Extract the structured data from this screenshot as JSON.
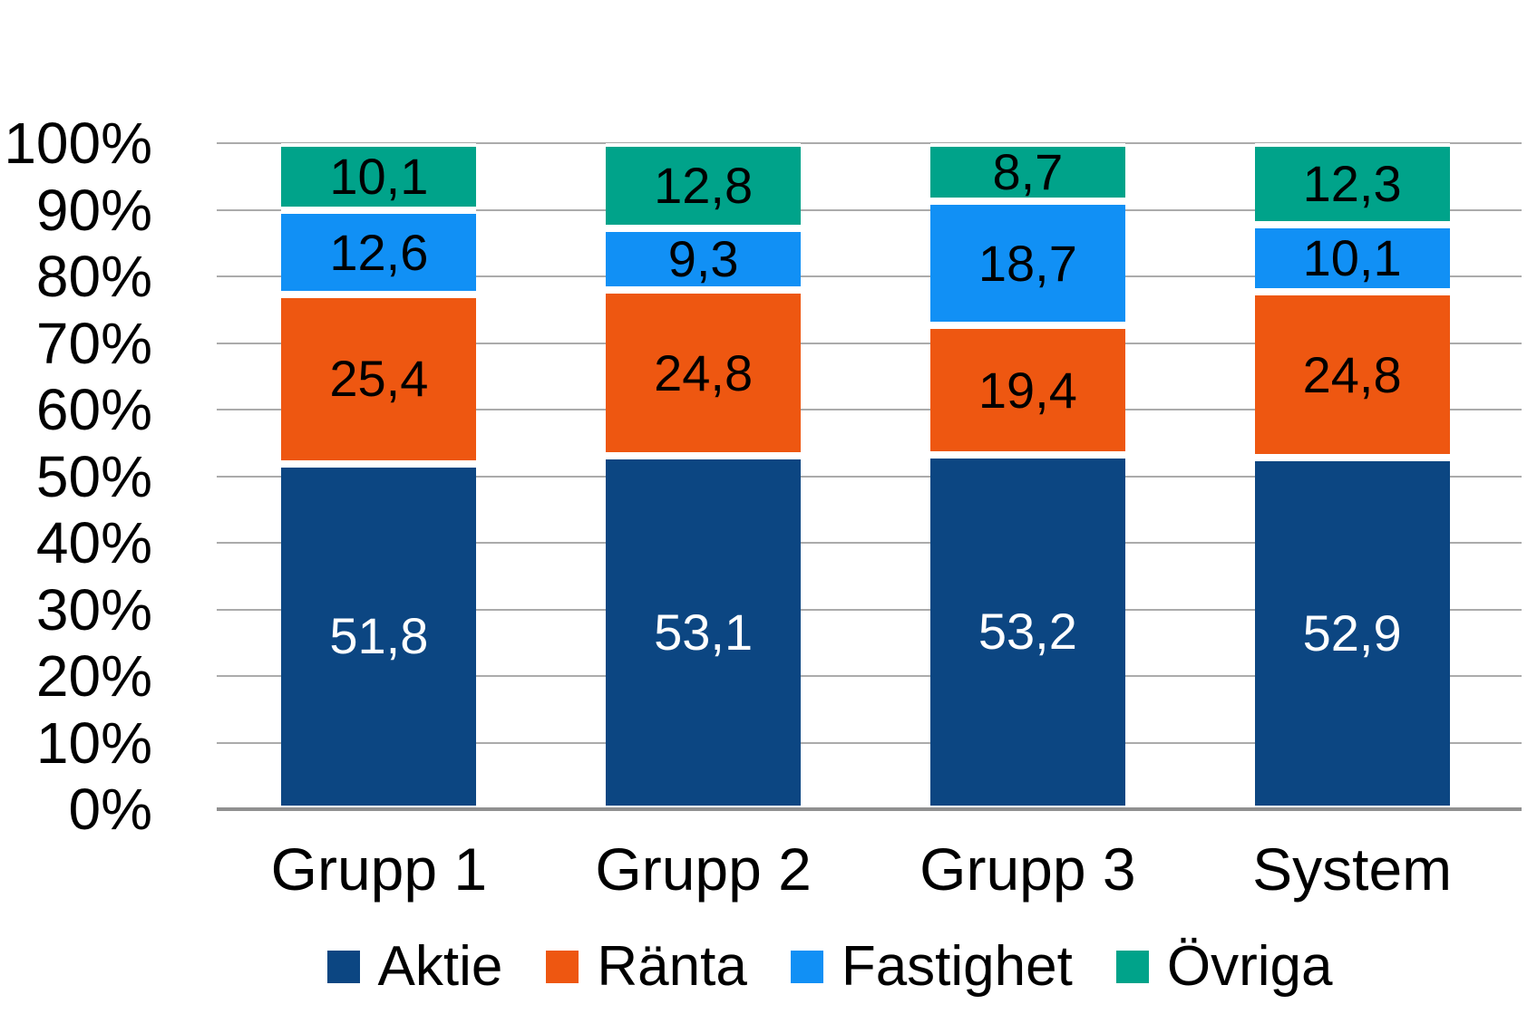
{
  "chart_data": {
    "type": "bar",
    "subtype": "stacked-percent-column",
    "categories": [
      "Grupp 1",
      "Grupp 2",
      "Grupp 3",
      "System"
    ],
    "series": [
      {
        "name": "Aktie",
        "color": "#0C4682",
        "label_text_color": "#FFFFFF",
        "values": [
          51.8,
          53.1,
          53.2,
          52.9
        ],
        "labels": [
          "51,8",
          "53,1",
          "53,2",
          "52,9"
        ]
      },
      {
        "name": "Ränta",
        "color": "#EE5711",
        "label_text_color": "#000000",
        "values": [
          25.4,
          24.8,
          19.4,
          24.8
        ],
        "labels": [
          "25,4",
          "24,8",
          "19,4",
          "24,8"
        ]
      },
      {
        "name": "Fastighet",
        "color": "#1190F5",
        "label_text_color": "#000000",
        "values": [
          12.6,
          9.3,
          18.7,
          10.1
        ],
        "labels": [
          "12,6",
          "9,3",
          "18,7",
          "10,1"
        ]
      },
      {
        "name": "Övriga",
        "color": "#00A38A",
        "label_text_color": "#000000",
        "values": [
          10.1,
          12.8,
          8.7,
          12.3
        ],
        "labels": [
          "10,1",
          "12,8",
          "8,7",
          "12,3"
        ]
      }
    ],
    "y_axis": {
      "min": 0,
      "max": 100,
      "tick_step": 10,
      "tick_labels": [
        "0%",
        "10%",
        "20%",
        "30%",
        "40%",
        "50%",
        "60%",
        "70%",
        "80%",
        "90%",
        "100%"
      ]
    },
    "legend": {
      "position": "bottom",
      "entries": [
        "Aktie",
        "Ränta",
        "Fastighet",
        "Övriga"
      ]
    },
    "grid": true,
    "gridline_color": "#ABABAB",
    "axis_line_color": "#909090",
    "background_color": "#FFFFFF"
  }
}
